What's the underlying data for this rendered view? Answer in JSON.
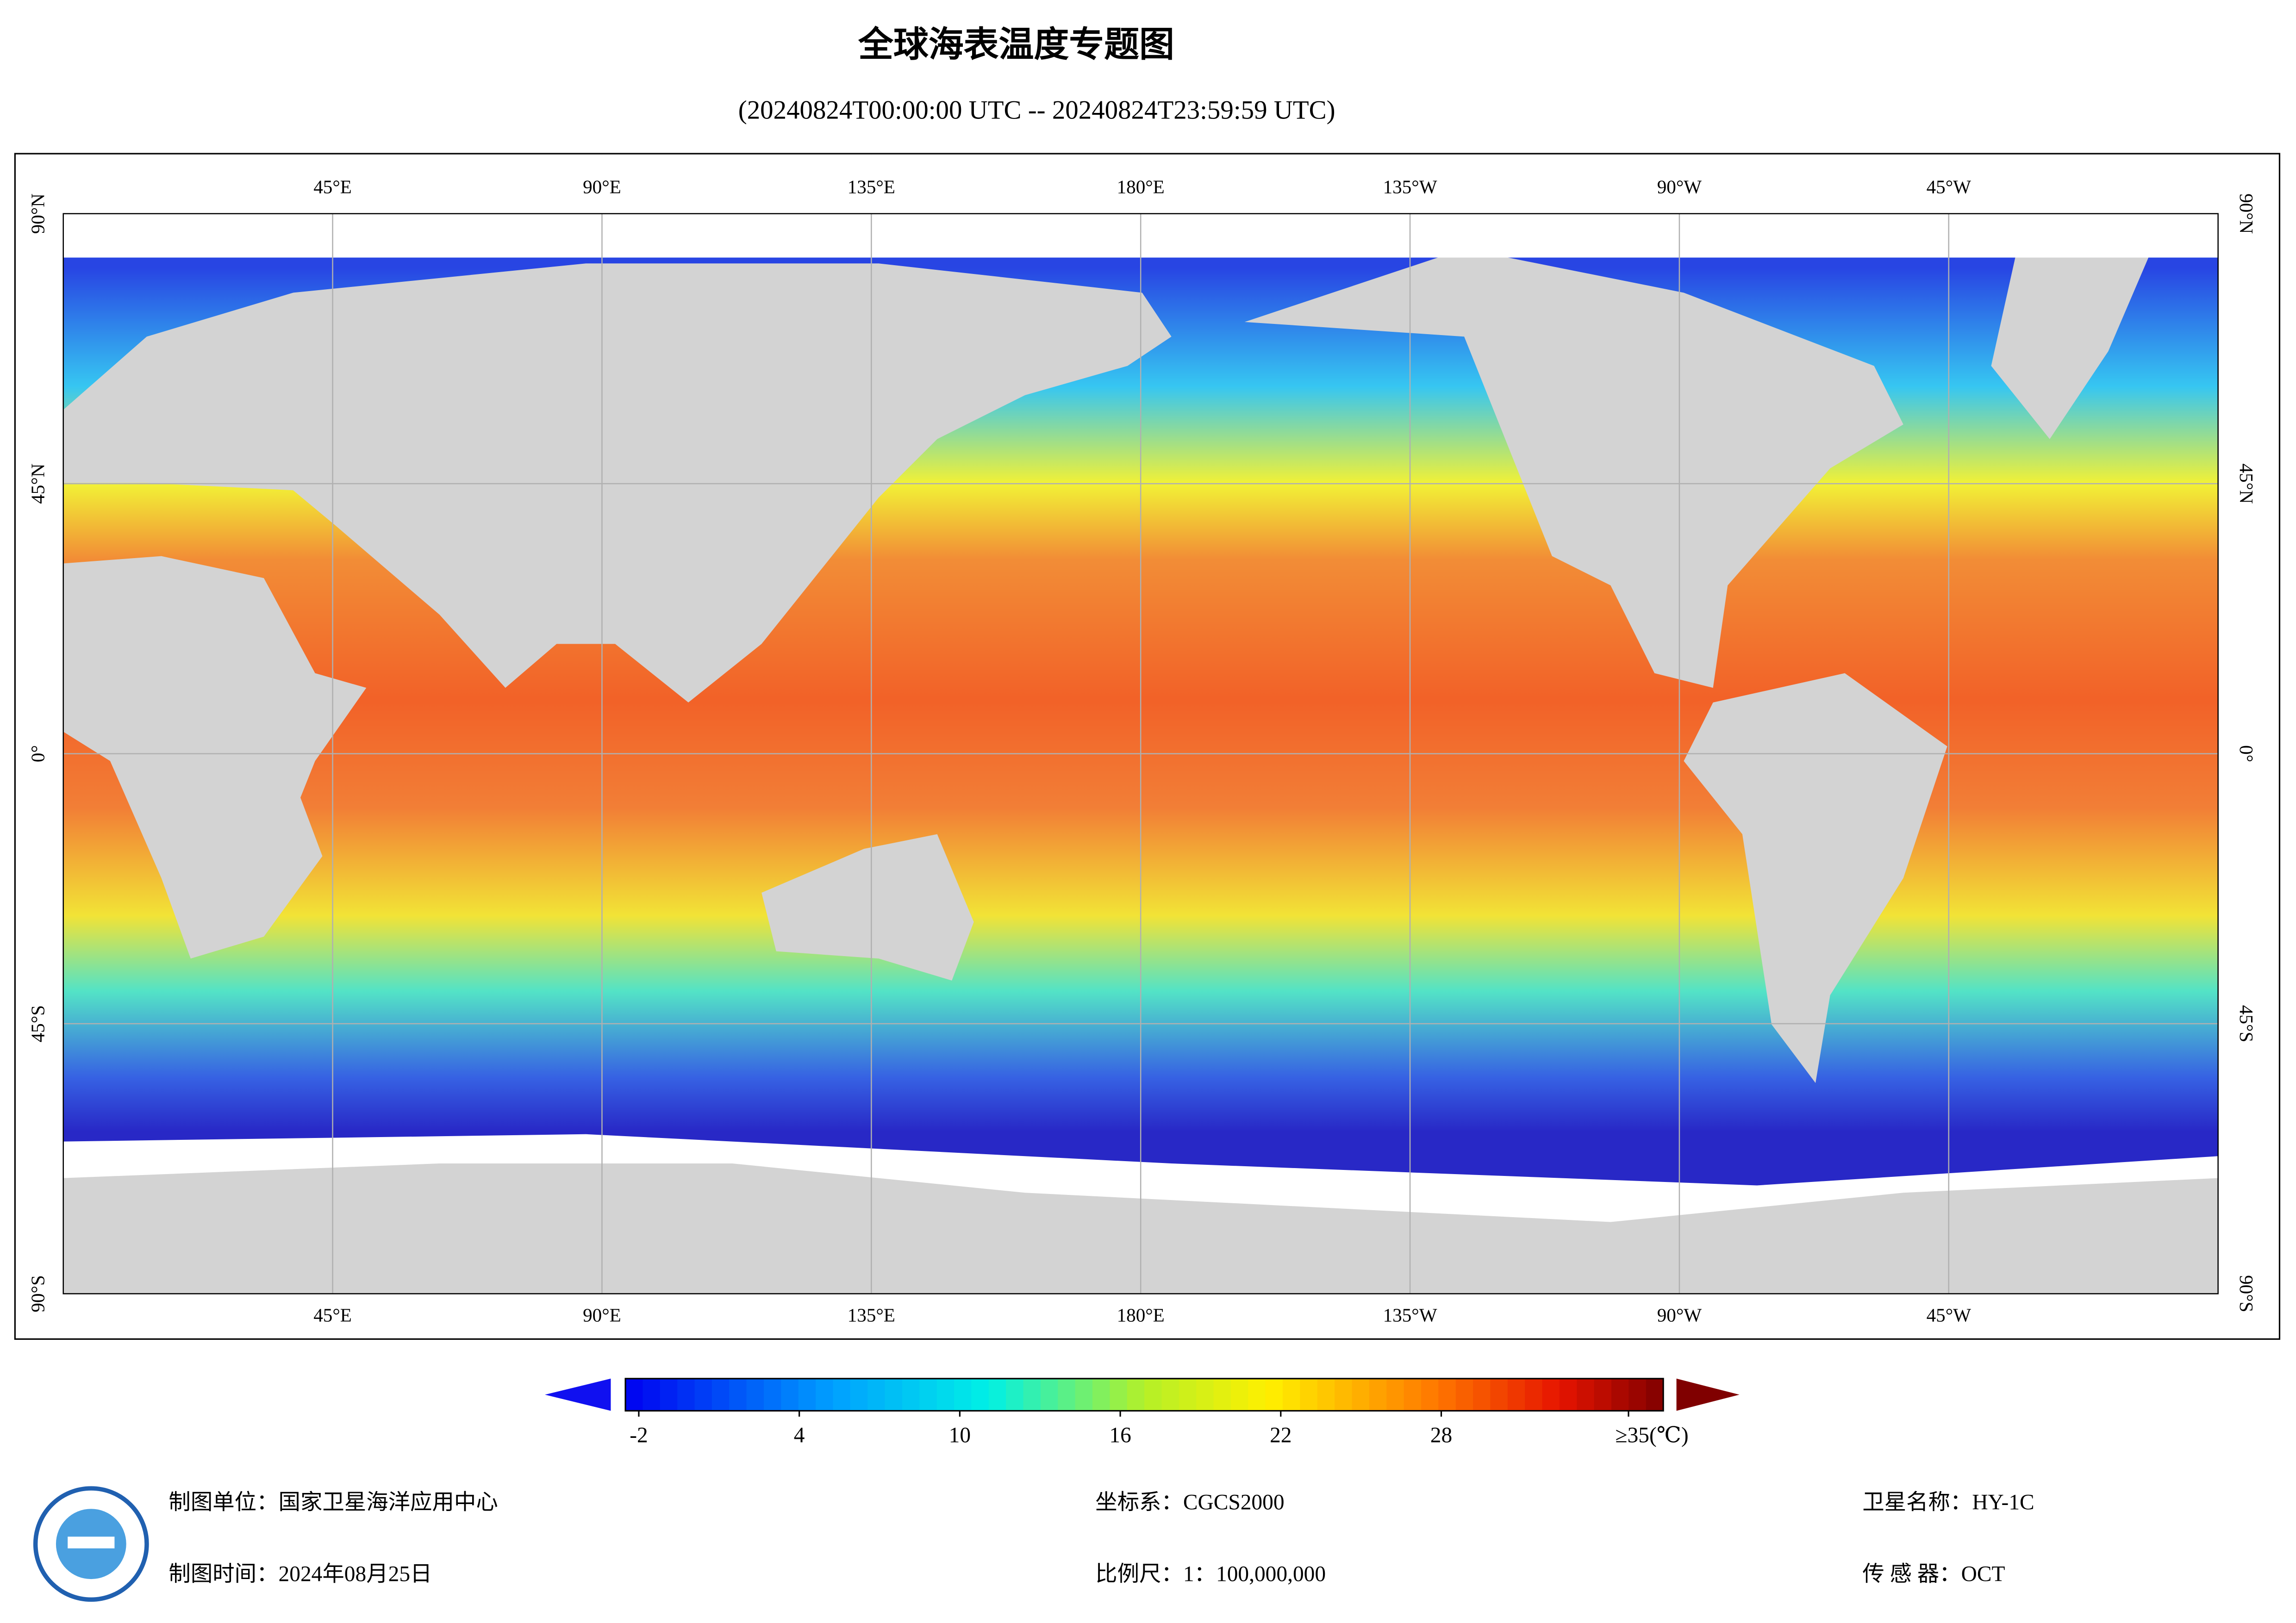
{
  "header": {
    "title": "全球海表温度专题图",
    "subtitle": "(20240824T00:00:00 UTC -- 20240824T23:59:59 UTC)"
  },
  "map": {
    "lon_labels": [
      "45°E",
      "90°E",
      "135°E",
      "180°E",
      "135°W",
      "90°W",
      "45°W"
    ],
    "lat_labels": [
      "90°N",
      "45°N",
      "0°",
      "45°S",
      "90°S"
    ]
  },
  "colorbar": {
    "lim": [
      -2.5,
      36.3
    ],
    "ticks": [
      -2,
      4,
      10,
      16,
      22,
      28,
      {
        "value": 35,
        "label": "≥35(℃)"
      }
    ]
  },
  "footer": {
    "unit": "制图单位：国家卫星海洋应用中心",
    "time": "制图时间：2024年08月25日",
    "crs": "坐标系：CGCS2000",
    "scale": "比例尺：1：100,000,000",
    "satellite": "卫星名称：HY-1C",
    "sensor": "传 感 器：OCT"
  }
}
